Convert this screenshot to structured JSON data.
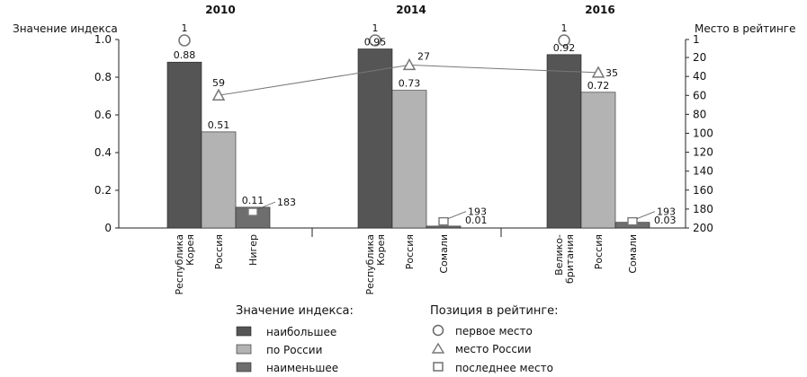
{
  "chart_data": {
    "type": "bar",
    "left_axis_label": "Значение индекса",
    "right_axis_label": "Место в рейтинге",
    "ylim_left": [
      0,
      1.0
    ],
    "yticks_left": [
      "0",
      "0.2",
      "0.4",
      "0.6",
      "0.8",
      "1.0"
    ],
    "ylim_right": [
      1,
      200
    ],
    "yticks_right": [
      "1",
      "20",
      "40",
      "60",
      "80",
      "100",
      "120",
      "140",
      "160",
      "180",
      "200"
    ],
    "right_axis_inverted": true,
    "grid": false,
    "groups": [
      {
        "year": "2010",
        "categories": [
          "Республика Корея",
          "Россия",
          "Нигер"
        ],
        "values": [
          0.88,
          0.51,
          0.11
        ],
        "value_labels": [
          "0.88",
          "0.51",
          "0.11"
        ],
        "first_place": "1",
        "russia_rank": 59,
        "russia_rank_label": "59",
        "last_place": 183,
        "last_place_label": "183"
      },
      {
        "year": "2014",
        "categories": [
          "Республика Корея",
          "Россия",
          "Сомали"
        ],
        "values": [
          0.95,
          0.73,
          0.01
        ],
        "value_labels": [
          "0.95",
          "0.73",
          "0.01"
        ],
        "first_place": "1",
        "russia_rank": 27,
        "russia_rank_label": "27",
        "last_place": 193,
        "last_place_label": "193"
      },
      {
        "year": "2016",
        "categories": [
          "Велико-британия",
          "Россия",
          "Сомали"
        ],
        "values": [
          0.92,
          0.72,
          0.03
        ],
        "value_labels": [
          "0.92",
          "0.72",
          "0.03"
        ],
        "first_place": "1",
        "russia_rank": 35,
        "russia_rank_label": "35",
        "last_place": 193,
        "last_place_label": "193"
      }
    ],
    "colors": {
      "highest": "#555555",
      "russia": "#b3b3b3",
      "lowest": "#6e6e6e",
      "marker": "#777777",
      "line": "#777777"
    },
    "legend": {
      "left_title": "Значение индекса:",
      "left_items": [
        "наибольшее",
        "по России",
        "наименьшее"
      ],
      "right_title": "Позиция в рейтинге:",
      "right_items": [
        "первое место",
        "место России",
        "последнее место"
      ]
    }
  }
}
